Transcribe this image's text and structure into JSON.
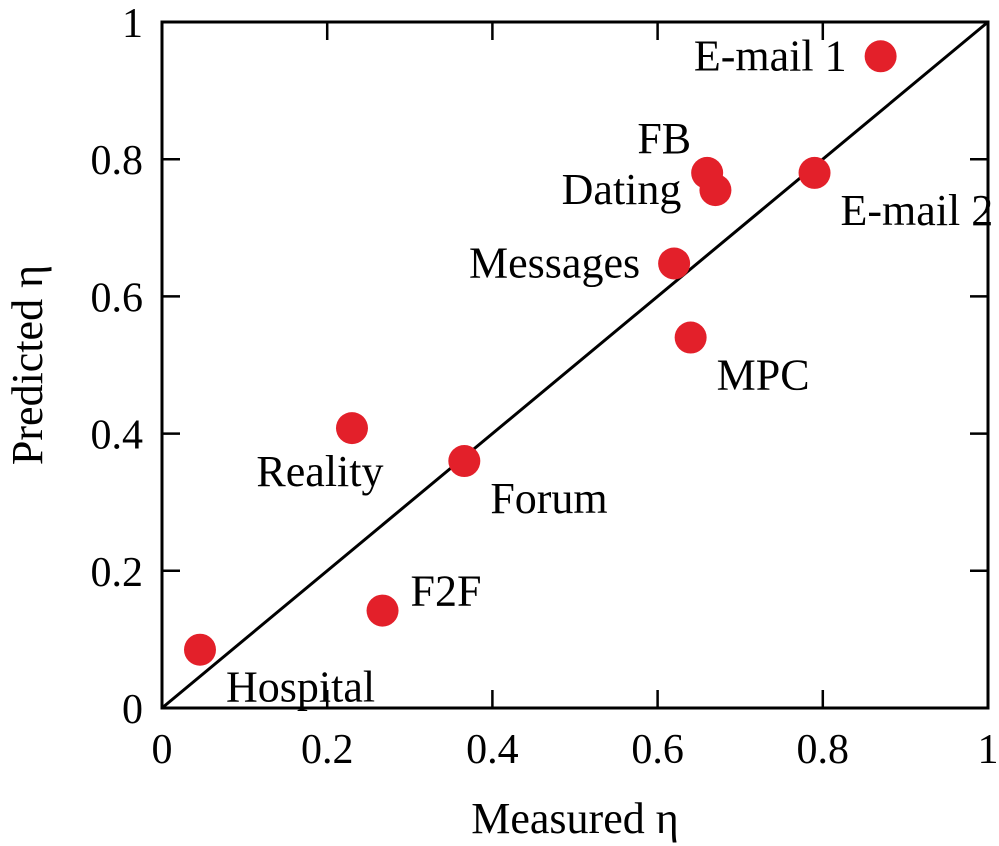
{
  "chart_data": {
    "type": "scatter",
    "xlabel": "Measured η",
    "ylabel": "Predicted η",
    "xlim": [
      0,
      1
    ],
    "ylim": [
      0,
      1
    ],
    "xticks": [
      "0",
      "0.2",
      "0.4",
      "0.6",
      "0.8",
      "1"
    ],
    "yticks": [
      "0",
      "0.2",
      "0.4",
      "0.6",
      "0.8",
      "1"
    ],
    "grid": false,
    "reference_line": {
      "x": [
        0,
        1
      ],
      "y": [
        0,
        1
      ]
    },
    "marker_color": "#e3202a",
    "points": [
      {
        "label": "E-mail 1",
        "x": 0.87,
        "y": 0.95,
        "label_side": "left"
      },
      {
        "label": "FB",
        "x": 0.66,
        "y": 0.78,
        "label_side": "upper-left"
      },
      {
        "label": "Dating",
        "x": 0.67,
        "y": 0.755,
        "label_side": "left"
      },
      {
        "label": "E-mail 2",
        "x": 0.79,
        "y": 0.78,
        "label_side": "lower-right"
      },
      {
        "label": "Messages",
        "x": 0.62,
        "y": 0.648,
        "label_side": "left"
      },
      {
        "label": "MPC",
        "x": 0.64,
        "y": 0.54,
        "label_side": "lower-right"
      },
      {
        "label": "Reality",
        "x": 0.23,
        "y": 0.408,
        "label_side": "below"
      },
      {
        "label": "Forum",
        "x": 0.366,
        "y": 0.36,
        "label_side": "lower-right"
      },
      {
        "label": "F2F",
        "x": 0.267,
        "y": 0.142,
        "label_side": "upper-right"
      },
      {
        "label": "Hospital",
        "x": 0.046,
        "y": 0.085,
        "label_side": "lower-right"
      }
    ]
  }
}
